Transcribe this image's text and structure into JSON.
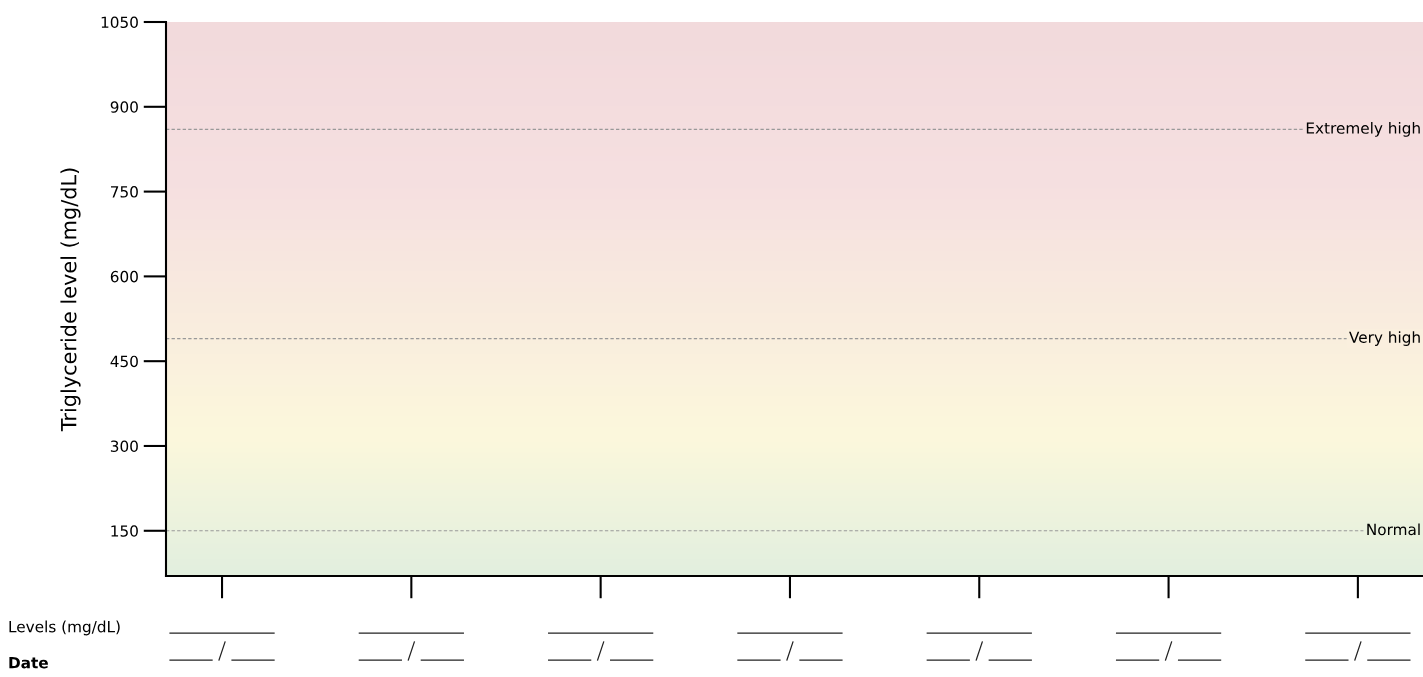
{
  "chart_data": {
    "type": "line",
    "ylabel": "Triglyceride level (mg/dL)",
    "categories": [
      null,
      null,
      null,
      null,
      null,
      null,
      null
    ],
    "values": [
      null,
      null,
      null,
      null,
      null,
      null,
      null
    ],
    "ylim": [
      70,
      1050
    ],
    "yticks": [
      150,
      300,
      450,
      600,
      750,
      900,
      1050
    ],
    "tick_labels": "y",
    "grid": false,
    "ref_lines": [
      {
        "axis": "y",
        "value": 150,
        "label": "Normal",
        "color": "#999999",
        "line_style": "dashed"
      },
      {
        "axis": "y",
        "value": 490,
        "label": "Very high",
        "color": "#999999",
        "line_style": "dashed"
      },
      {
        "axis": "y",
        "value": 860,
        "label": "Extremely high",
        "color": "#999999",
        "line_style": "dashed"
      }
    ],
    "annotations": [
      "Levels (mg/dL)",
      "Date"
    ]
  }
}
